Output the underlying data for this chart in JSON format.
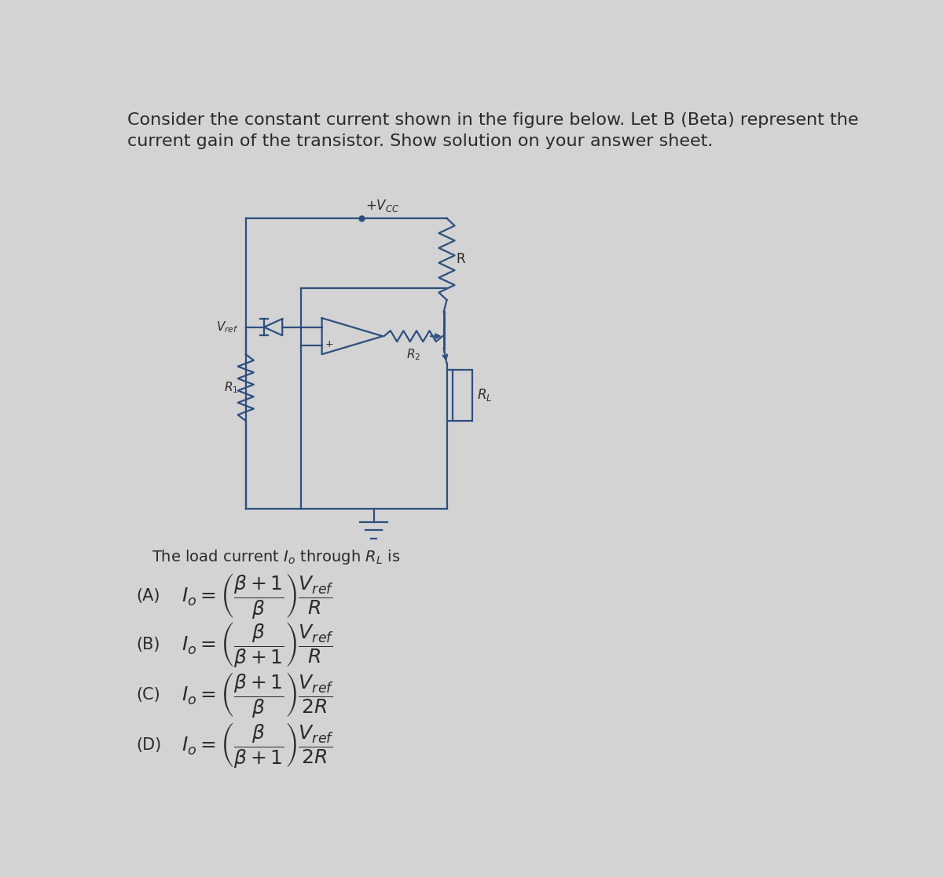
{
  "background_color": "#d3d3d3",
  "title_line1": "Consider the constant current shown in the figure below. Let B (Beta) represent the",
  "title_line2": "current gain of the transistor. Show solution on your answer sheet.",
  "title_fontsize": 16,
  "text_color": "#2a2a2a",
  "circuit_color": "#2d4f7f",
  "subtitle": "The load current $I_o$ through $R_L$ is",
  "subtitle_fontsize": 14,
  "choices": [
    {
      "label": "(A)",
      "expr": "$I_o = \\left(\\dfrac{\\beta+1}{\\beta}\\right)\\dfrac{V_{ref}}{R}$"
    },
    {
      "label": "(B)",
      "expr": "$I_o = \\left(\\dfrac{\\beta}{\\beta+1}\\right)\\dfrac{V_{ref}}{R}$"
    },
    {
      "label": "(C)",
      "expr": "$I_o = \\left(\\dfrac{\\beta+1}{\\beta}\\right)\\dfrac{V_{ref}}{2R}$"
    },
    {
      "label": "(D)",
      "expr": "$I_o = \\left(\\dfrac{\\beta}{\\beta+1}\\right)\\dfrac{V_{ref}}{2R}$"
    }
  ],
  "choice_fontsize": 15
}
